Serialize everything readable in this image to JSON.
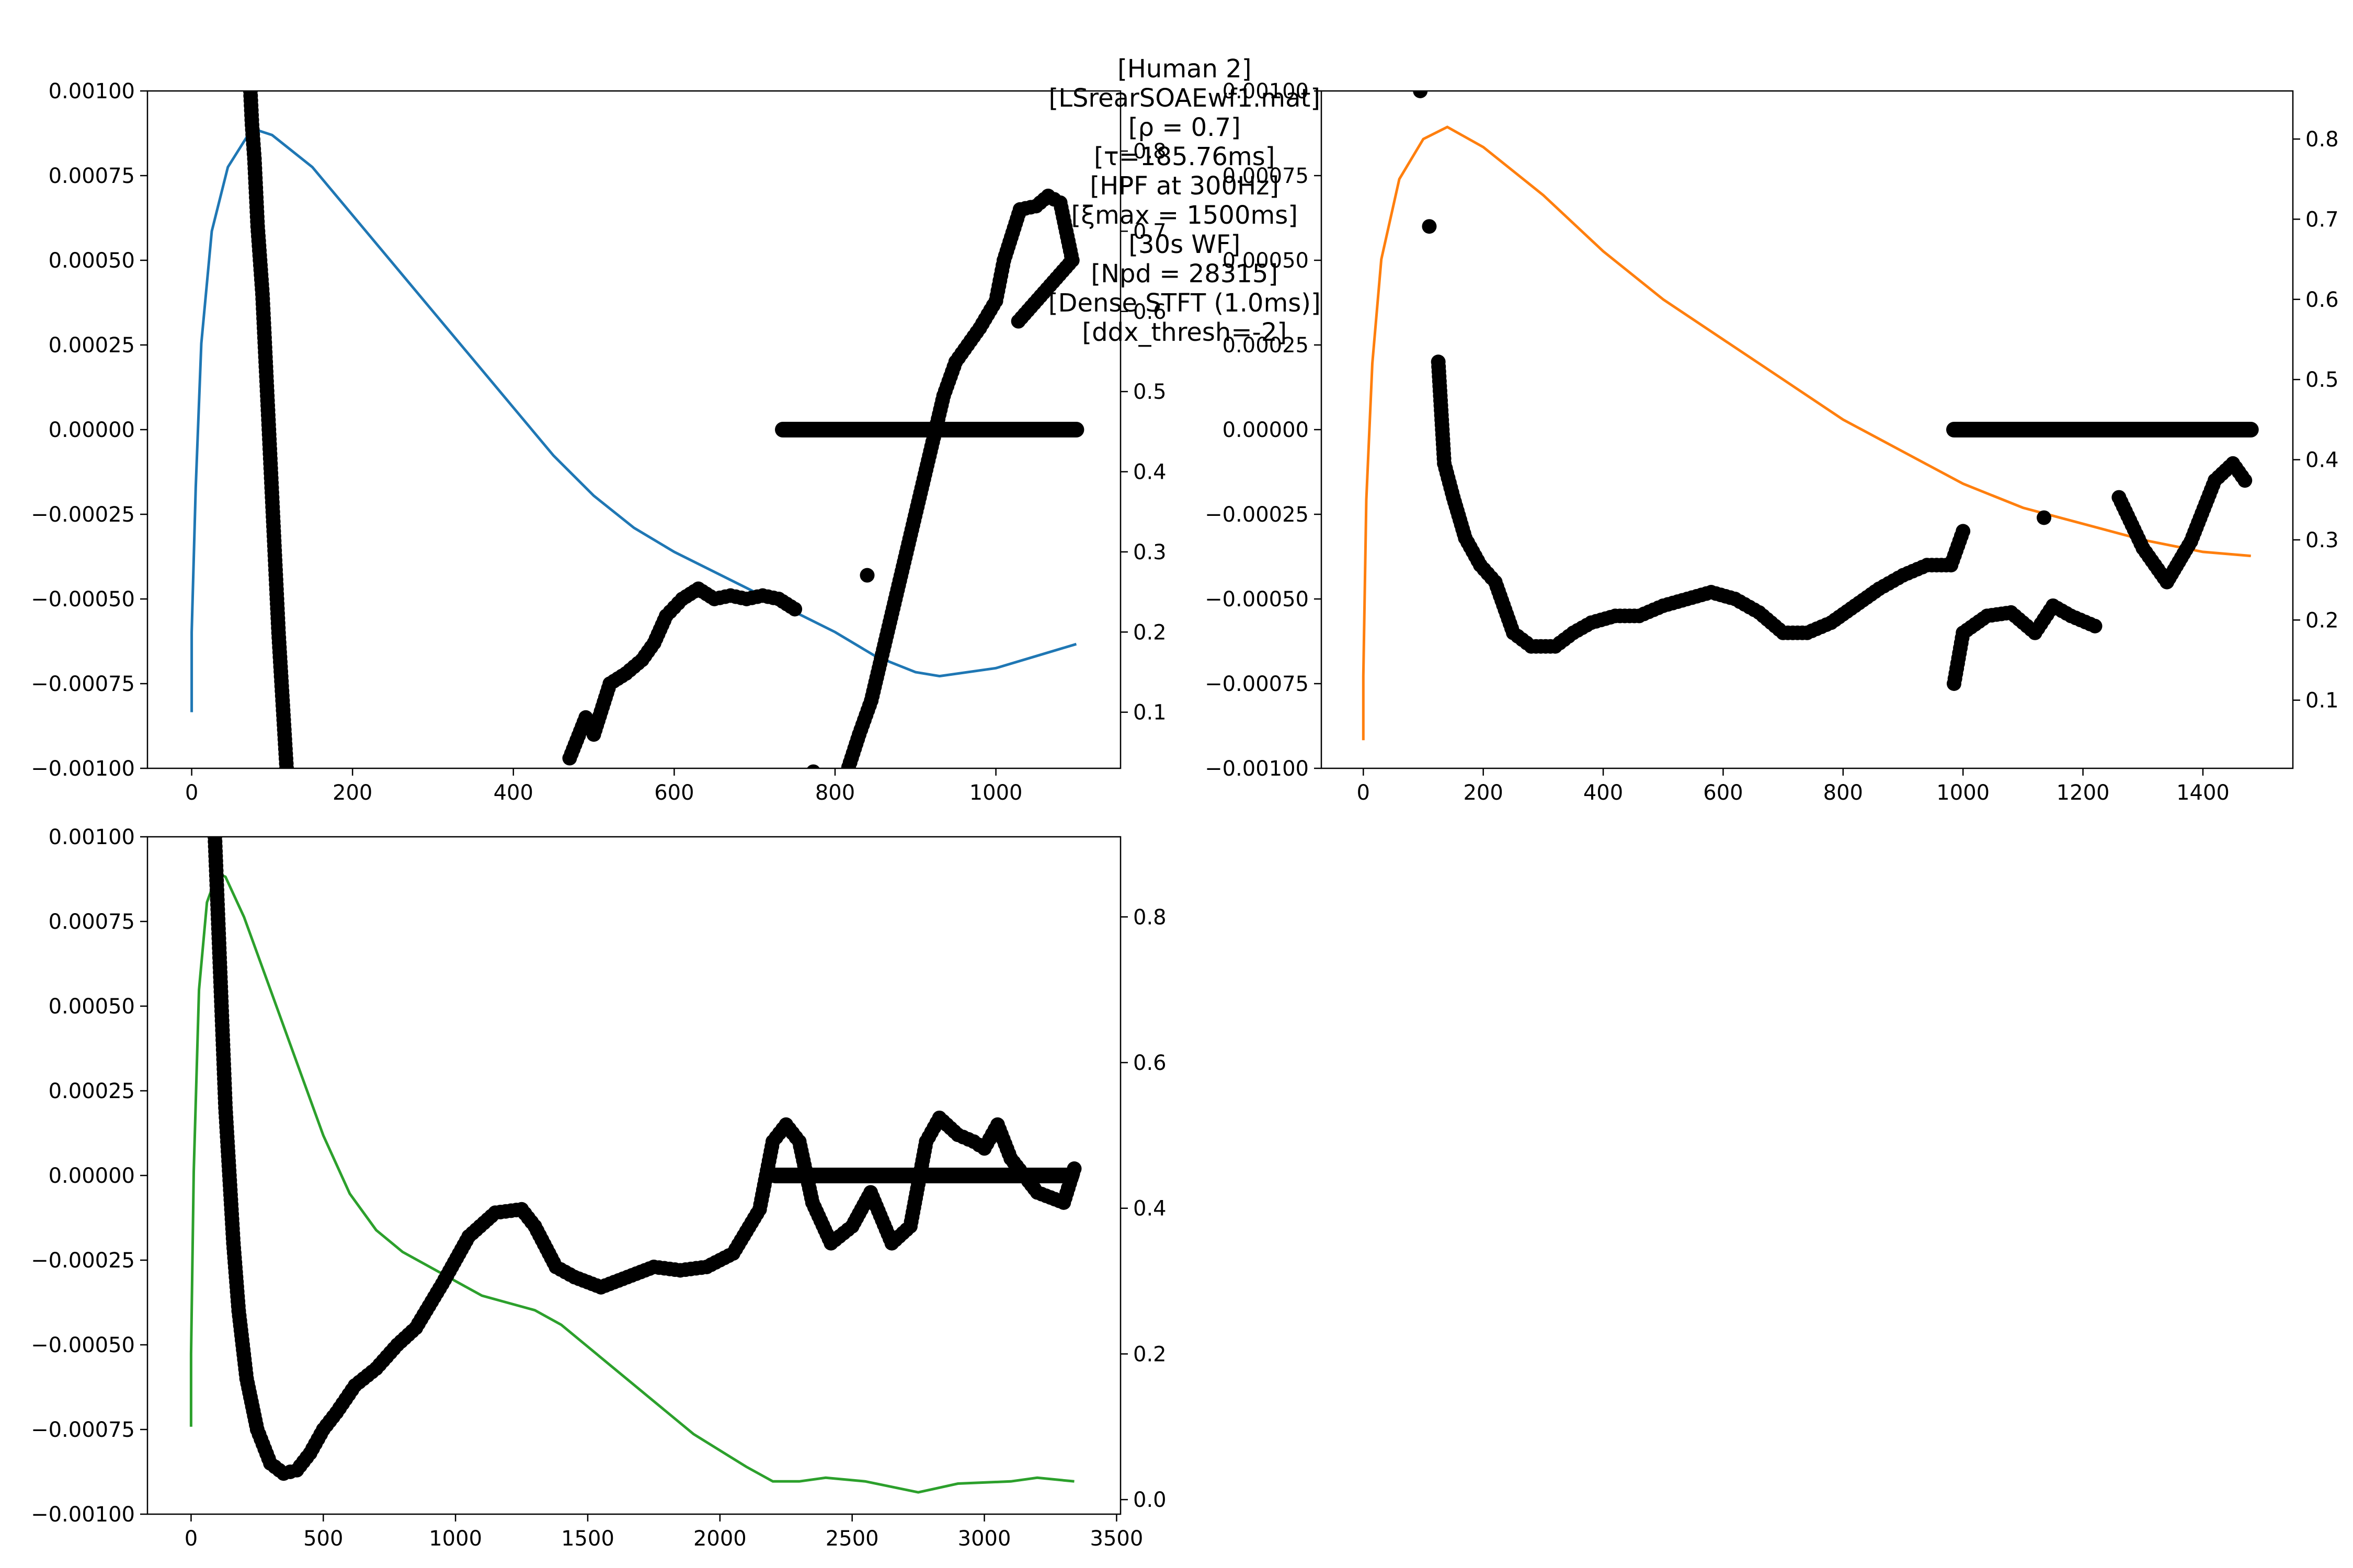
{
  "title_segments": [
    "[Human 2]",
    "[LSrearSOAEwf1.mat]",
    "[ρ = 0.7]",
    "[τ=185.76ms]",
    "[HPF at 300Hz]",
    "[ξmax = 1500ms]",
    "[30s WF]",
    "[Npd = 28315]",
    "[Dense STFT (1.0ms)]",
    "[ddx_thresh=-2]"
  ],
  "chart_data": [
    {
      "type": "line",
      "name": "panel-1",
      "line_color": "#1f77b4",
      "x_ticks": [
        0,
        200,
        400,
        600,
        800,
        1000
      ],
      "xlim": [
        -55,
        1155
      ],
      "left_ylim": [
        -0.001,
        0.001
      ],
      "left_ticks": [
        -0.001,
        -0.00075,
        -0.0005,
        -0.00025,
        0.0,
        0.00025,
        0.0005,
        0.00075,
        0.001
      ],
      "left_tick_labels": [
        "−0.00100",
        "−0.00075",
        "−0.00050",
        "−0.00025",
        "0.00000",
        "0.00025",
        "0.00050",
        "0.00075",
        "0.00100"
      ],
      "right_ylim": [
        0.03,
        0.875
      ],
      "right_ticks": [
        0.1,
        0.2,
        0.3,
        0.4,
        0.5,
        0.6,
        0.7,
        0.8
      ],
      "right_tick_labels": [
        "0.1",
        "0.2",
        "0.3",
        "0.4",
        "0.5",
        "0.6",
        "0.7",
        "0.8"
      ],
      "line": [
        [
          0,
          0.1
        ],
        [
          0,
          0.2
        ],
        [
          5,
          0.38
        ],
        [
          12,
          0.56
        ],
        [
          25,
          0.7
        ],
        [
          45,
          0.78
        ],
        [
          70,
          0.82
        ],
        [
          85,
          0.825
        ],
        [
          100,
          0.82
        ],
        [
          150,
          0.78
        ],
        [
          200,
          0.72
        ],
        [
          300,
          0.6
        ],
        [
          400,
          0.48
        ],
        [
          450,
          0.42
        ],
        [
          500,
          0.37
        ],
        [
          550,
          0.33
        ],
        [
          600,
          0.3
        ],
        [
          700,
          0.25
        ],
        [
          800,
          0.2
        ],
        [
          850,
          0.17
        ],
        [
          900,
          0.15
        ],
        [
          930,
          0.145
        ],
        [
          1000,
          0.155
        ],
        [
          1050,
          0.17
        ],
        [
          1100,
          0.185
        ]
      ],
      "dots": [
        [
          73,
          0.001
        ],
        [
          75,
          0.0009
        ],
        [
          78,
          0.0008
        ],
        [
          82,
          0.0006
        ],
        [
          88,
          0.0004
        ],
        [
          92,
          0.0002
        ],
        [
          96,
          0.0
        ],
        [
          100,
          -0.0002
        ],
        [
          104,
          -0.0004
        ],
        [
          108,
          -0.0006
        ],
        [
          113,
          -0.0008
        ],
        [
          118,
          -0.001
        ],
        [
          470,
          -0.00097
        ],
        [
          490,
          -0.00085
        ],
        [
          500,
          -0.0009
        ],
        [
          520,
          -0.00075
        ],
        [
          540,
          -0.00072
        ],
        [
          560,
          -0.00068
        ],
        [
          575,
          -0.00063
        ],
        [
          590,
          -0.00055
        ],
        [
          610,
          -0.0005
        ],
        [
          630,
          -0.00047
        ],
        [
          650,
          -0.0005
        ],
        [
          670,
          -0.00049
        ],
        [
          690,
          -0.0005
        ],
        [
          710,
          -0.00049
        ],
        [
          730,
          -0.0005
        ],
        [
          750,
          -0.00053
        ],
        [
          773,
          -0.00101
        ],
        [
          840,
          -0.00043
        ],
        [
          815,
          -0.00101
        ],
        [
          830,
          -0.0009
        ],
        [
          845,
          -0.0008
        ],
        [
          860,
          -0.00065
        ],
        [
          875,
          -0.0005
        ],
        [
          890,
          -0.00035
        ],
        [
          905,
          -0.0002
        ],
        [
          920,
          -5e-05
        ],
        [
          935,
          0.0001
        ],
        [
          950,
          0.0002
        ],
        [
          965,
          0.00025
        ],
        [
          980,
          0.0003
        ],
        [
          1000,
          0.00038
        ],
        [
          1010,
          0.0005
        ],
        [
          1030,
          0.00065
        ],
        [
          1050,
          0.00066
        ],
        [
          1065,
          0.00069
        ],
        [
          1080,
          0.00067
        ],
        [
          1095,
          0.0005
        ],
        [
          1028,
          0.00032
        ]
      ],
      "plateau": {
        "y": 0.0,
        "x0": 735,
        "x1": 1100
      }
    },
    {
      "type": "line",
      "name": "panel-2",
      "line_color": "#ff7f0e",
      "x_ticks": [
        0,
        200,
        400,
        600,
        800,
        1000,
        1200,
        1400
      ],
      "xlim": [
        -70,
        1550
      ],
      "left_ylim": [
        -0.001,
        0.001
      ],
      "left_ticks": [
        -0.001,
        -0.00075,
        -0.0005,
        -0.00025,
        0.0,
        0.00025,
        0.0005,
        0.00075,
        0.001
      ],
      "left_tick_labels": [
        "−0.00100",
        "−0.00075",
        "−0.00050",
        "−0.00025",
        "0.00000",
        "0.00025",
        "0.00050",
        "0.00075",
        "0.00100"
      ],
      "right_ylim": [
        0.015,
        0.86
      ],
      "right_ticks": [
        0.1,
        0.2,
        0.3,
        0.4,
        0.5,
        0.6,
        0.7,
        0.8
      ],
      "right_tick_labels": [
        "0.1",
        "0.2",
        "0.3",
        "0.4",
        "0.5",
        "0.6",
        "0.7",
        "0.8"
      ],
      "line": [
        [
          0,
          0.05
        ],
        [
          0,
          0.13
        ],
        [
          5,
          0.35
        ],
        [
          15,
          0.52
        ],
        [
          30,
          0.65
        ],
        [
          60,
          0.75
        ],
        [
          100,
          0.8
        ],
        [
          140,
          0.815
        ],
        [
          200,
          0.79
        ],
        [
          300,
          0.73
        ],
        [
          400,
          0.66
        ],
        [
          500,
          0.6
        ],
        [
          600,
          0.55
        ],
        [
          700,
          0.5
        ],
        [
          800,
          0.45
        ],
        [
          900,
          0.41
        ],
        [
          1000,
          0.37
        ],
        [
          1100,
          0.34
        ],
        [
          1200,
          0.32
        ],
        [
          1300,
          0.3
        ],
        [
          1400,
          0.285
        ],
        [
          1480,
          0.28
        ]
      ],
      "dots": [
        [
          95,
          0.001
        ],
        [
          110,
          0.0006
        ],
        [
          125,
          0.0002
        ],
        [
          135,
          -0.0001
        ],
        [
          150,
          -0.0002
        ],
        [
          170,
          -0.00032
        ],
        [
          195,
          -0.0004
        ],
        [
          220,
          -0.00045
        ],
        [
          250,
          -0.0006
        ],
        [
          280,
          -0.00064
        ],
        [
          320,
          -0.00064
        ],
        [
          350,
          -0.0006
        ],
        [
          380,
          -0.00057
        ],
        [
          420,
          -0.00055
        ],
        [
          460,
          -0.00055
        ],
        [
          500,
          -0.00052
        ],
        [
          540,
          -0.0005
        ],
        [
          580,
          -0.00048
        ],
        [
          620,
          -0.0005
        ],
        [
          660,
          -0.00054
        ],
        [
          700,
          -0.0006
        ],
        [
          740,
          -0.0006
        ],
        [
          780,
          -0.00057
        ],
        [
          820,
          -0.00052
        ],
        [
          860,
          -0.00047
        ],
        [
          900,
          -0.00043
        ],
        [
          940,
          -0.0004
        ],
        [
          980,
          -0.0004
        ],
        [
          1000,
          -0.0003
        ],
        [
          985,
          -0.00075
        ],
        [
          1000,
          -0.0006
        ],
        [
          1040,
          -0.00055
        ],
        [
          1080,
          -0.00054
        ],
        [
          1120,
          -0.0006
        ],
        [
          1150,
          -0.00052
        ],
        [
          1180,
          -0.00055
        ],
        [
          1220,
          -0.00058
        ],
        [
          1260,
          -0.0002
        ],
        [
          1300,
          -0.00035
        ],
        [
          1340,
          -0.00045
        ],
        [
          1380,
          -0.00033
        ],
        [
          1420,
          -0.00015
        ],
        [
          1450,
          -0.0001
        ],
        [
          1470,
          -0.00015
        ],
        [
          1135,
          -0.00026
        ]
      ],
      "plateau": {
        "y": 0.0,
        "x0": 985,
        "x1": 1480
      }
    },
    {
      "type": "line",
      "name": "panel-3",
      "line_color": "#2ca02c",
      "x_ticks": [
        0,
        500,
        1000,
        1500,
        2000,
        2500,
        3000,
        3500
      ],
      "xlim": [
        -165,
        3515
      ],
      "left_ylim": [
        -0.001,
        0.001
      ],
      "left_ticks": [
        -0.001,
        -0.00075,
        -0.0005,
        -0.00025,
        0.0,
        0.00025,
        0.0005,
        0.00075,
        0.001
      ],
      "left_tick_labels": [
        "−0.00100",
        "−0.00075",
        "−0.00050",
        "−0.00025",
        "0.00000",
        "0.00025",
        "0.00050",
        "0.00075",
        "0.00100"
      ],
      "right_ylim": [
        -0.02,
        0.91
      ],
      "right_ticks": [
        0.0,
        0.2,
        0.4,
        0.6,
        0.8
      ],
      "right_tick_labels": [
        "0.0",
        "0.2",
        "0.4",
        "0.6",
        "0.8"
      ],
      "line": [
        [
          0,
          0.1
        ],
        [
          0,
          0.2
        ],
        [
          10,
          0.45
        ],
        [
          30,
          0.7
        ],
        [
          60,
          0.82
        ],
        [
          100,
          0.86
        ],
        [
          130,
          0.855
        ],
        [
          200,
          0.8
        ],
        [
          300,
          0.7
        ],
        [
          400,
          0.6
        ],
        [
          500,
          0.5
        ],
        [
          600,
          0.42
        ],
        [
          700,
          0.37
        ],
        [
          800,
          0.34
        ],
        [
          900,
          0.32
        ],
        [
          1000,
          0.3
        ],
        [
          1100,
          0.28
        ],
        [
          1200,
          0.27
        ],
        [
          1300,
          0.26
        ],
        [
          1400,
          0.24
        ],
        [
          1500,
          0.21
        ],
        [
          1700,
          0.15
        ],
        [
          1900,
          0.09
        ],
        [
          2100,
          0.045
        ],
        [
          2200,
          0.025
        ],
        [
          2300,
          0.025
        ],
        [
          2400,
          0.03
        ],
        [
          2550,
          0.025
        ],
        [
          2750,
          0.01
        ],
        [
          2900,
          0.022
        ],
        [
          3100,
          0.025
        ],
        [
          3200,
          0.03
        ],
        [
          3340,
          0.025
        ]
      ],
      "dots": [
        [
          90,
          0.001
        ],
        [
          95,
          0.0009
        ],
        [
          100,
          0.0008
        ],
        [
          110,
          0.0006
        ],
        [
          120,
          0.0004
        ],
        [
          130,
          0.0002
        ],
        [
          145,
          0.0
        ],
        [
          160,
          -0.0002
        ],
        [
          180,
          -0.0004
        ],
        [
          210,
          -0.0006
        ],
        [
          250,
          -0.00075
        ],
        [
          300,
          -0.00085
        ],
        [
          350,
          -0.00088
        ],
        [
          400,
          -0.00087
        ],
        [
          450,
          -0.00082
        ],
        [
          500,
          -0.00075
        ],
        [
          550,
          -0.0007
        ],
        [
          620,
          -0.00062
        ],
        [
          700,
          -0.00057
        ],
        [
          780,
          -0.0005
        ],
        [
          850,
          -0.00045
        ],
        [
          950,
          -0.00032
        ],
        [
          1050,
          -0.00018
        ],
        [
          1150,
          -0.00011
        ],
        [
          1250,
          -0.0001
        ],
        [
          1300,
          -0.00015
        ],
        [
          1380,
          -0.00027
        ],
        [
          1450,
          -0.0003
        ],
        [
          1550,
          -0.00033
        ],
        [
          1650,
          -0.0003
        ],
        [
          1750,
          -0.00027
        ],
        [
          1850,
          -0.00028
        ],
        [
          1950,
          -0.00027
        ],
        [
          2050,
          -0.00023
        ],
        [
          2150,
          -0.0001
        ],
        [
          2200,
          0.0001
        ],
        [
          2250,
          0.00015
        ],
        [
          2300,
          0.0001
        ],
        [
          2350,
          -8e-05
        ],
        [
          2420,
          -0.0002
        ],
        [
          2500,
          -0.00015
        ],
        [
          2570,
          -5e-05
        ],
        [
          2650,
          -0.0002
        ],
        [
          2720,
          -0.00015
        ],
        [
          2780,
          0.0001
        ],
        [
          2830,
          0.00017
        ],
        [
          2900,
          0.00012
        ],
        [
          2960,
          0.0001
        ],
        [
          3000,
          8e-05
        ],
        [
          3050,
          0.00015
        ],
        [
          3100,
          5e-05
        ],
        [
          3200,
          -5e-05
        ],
        [
          3300,
          -8e-05
        ],
        [
          3340,
          2e-05
        ]
      ],
      "plateau": {
        "y": 0.0,
        "x0": 2210,
        "x1": 3330
      }
    }
  ]
}
